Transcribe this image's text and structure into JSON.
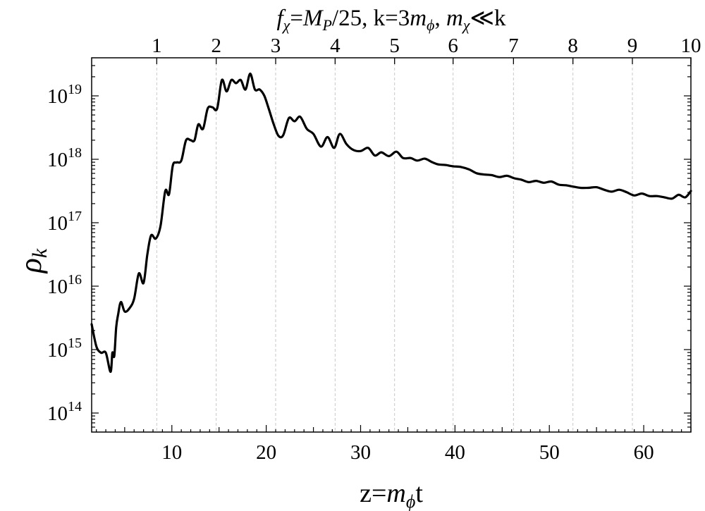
{
  "title": {
    "f_symbol": "f",
    "f_sub": "χ",
    "eq1": "=",
    "mp": "M",
    "mp_sub": "P",
    "over": "/25, k=3",
    "m1": "m",
    "m1_sub": "ϕ",
    "sep": ", ",
    "m2": "m",
    "m2_sub": "χ",
    "tail": "≪k"
  },
  "xlabel": {
    "prefix": "z=",
    "m": "m",
    "m_sub": "ϕ",
    "suffix": "t"
  },
  "ylabel": {
    "main": "ρ",
    "sub": "k"
  },
  "chart_data": {
    "type": "line",
    "x_scale": "linear",
    "y_scale": "log",
    "xlim": [
      1.5,
      65
    ],
    "ylim_log10": [
      13.7,
      19.6
    ],
    "bottom_ticks": [
      10,
      20,
      30,
      40,
      50,
      60
    ],
    "left_ticks": [
      {
        "base": "10",
        "exp": "14",
        "value": 14
      },
      {
        "base": "10",
        "exp": "15",
        "value": 15
      },
      {
        "base": "10",
        "exp": "16",
        "value": 16
      },
      {
        "base": "10",
        "exp": "17",
        "value": 17
      },
      {
        "base": "10",
        "exp": "18",
        "value": 18
      },
      {
        "base": "10",
        "exp": "19",
        "value": 19
      }
    ],
    "top_ticks": [
      {
        "label": "1",
        "z": 8.4
      },
      {
        "label": "2",
        "z": 14.7
      },
      {
        "label": "3",
        "z": 21.0
      },
      {
        "label": "4",
        "z": 27.3
      },
      {
        "label": "5",
        "z": 33.6
      },
      {
        "label": "6",
        "z": 39.8
      },
      {
        "label": "7",
        "z": 46.2
      },
      {
        "label": "8",
        "z": 52.5
      },
      {
        "label": "9",
        "z": 58.8
      },
      {
        "label": "10",
        "z": 65.0
      }
    ],
    "grid": "vertical dashed lines at top ticks",
    "series": [
      {
        "x": [
          1.5,
          2.0,
          2.5,
          3.0,
          3.5,
          3.7,
          3.9,
          4.1,
          4.3,
          4.6,
          5.0,
          5.5,
          6.0,
          6.5,
          7.0,
          7.4,
          7.8,
          8.3,
          8.8,
          9.3,
          9.7,
          10.1,
          10.5,
          11.0,
          11.5,
          12.0,
          12.4,
          12.8,
          13.3,
          13.8,
          14.3,
          14.8,
          15.3,
          15.8,
          16.3,
          16.8,
          17.3,
          17.8,
          18.3,
          18.8,
          19.3,
          19.8,
          20.3,
          20.8,
          21.3,
          21.8,
          22.4,
          23.0,
          23.6,
          24.3,
          25.0,
          25.8,
          26.5,
          27.2,
          27.8,
          28.5,
          29.2,
          30.0,
          30.8,
          31.5,
          32.2,
          33.0,
          33.8,
          34.5,
          35.3,
          36.0,
          36.8,
          37.5,
          38.2,
          39.0,
          39.8,
          40.6,
          41.5,
          42.3,
          43.1,
          43.9,
          44.7,
          45.5,
          46.3,
          47.0,
          47.8,
          48.6,
          49.4,
          50.2,
          51.0,
          51.8,
          52.5,
          53.3,
          54.1,
          55.0,
          55.8,
          56.6,
          57.4,
          58.2,
          59.0,
          59.8,
          60.6,
          61.4,
          62.2,
          63.0,
          63.7,
          64.4,
          65.0
        ],
        "log10_y": [
          15.4,
          15.05,
          14.95,
          14.95,
          14.65,
          14.95,
          14.9,
          15.35,
          15.55,
          15.75,
          15.6,
          15.65,
          15.8,
          16.2,
          16.05,
          16.5,
          16.8,
          16.75,
          16.95,
          17.5,
          17.45,
          17.9,
          17.95,
          17.98,
          18.3,
          18.3,
          18.3,
          18.55,
          18.48,
          18.8,
          18.82,
          18.8,
          19.25,
          19.07,
          19.25,
          19.2,
          19.25,
          19.1,
          19.35,
          19.1,
          19.1,
          19.0,
          18.78,
          18.55,
          18.37,
          18.38,
          18.65,
          18.6,
          18.67,
          18.48,
          18.4,
          18.2,
          18.35,
          18.18,
          18.4,
          18.24,
          18.15,
          18.13,
          18.18,
          18.06,
          18.11,
          18.05,
          18.12,
          18.02,
          18.02,
          17.98,
          18.01,
          17.96,
          17.92,
          17.91,
          17.89,
          17.88,
          17.84,
          17.78,
          17.76,
          17.75,
          17.72,
          17.74,
          17.7,
          17.68,
          17.64,
          17.66,
          17.63,
          17.65,
          17.6,
          17.59,
          17.57,
          17.55,
          17.55,
          17.56,
          17.52,
          17.49,
          17.52,
          17.48,
          17.43,
          17.46,
          17.42,
          17.42,
          17.4,
          17.38,
          17.44,
          17.4,
          17.5
        ]
      }
    ]
  }
}
